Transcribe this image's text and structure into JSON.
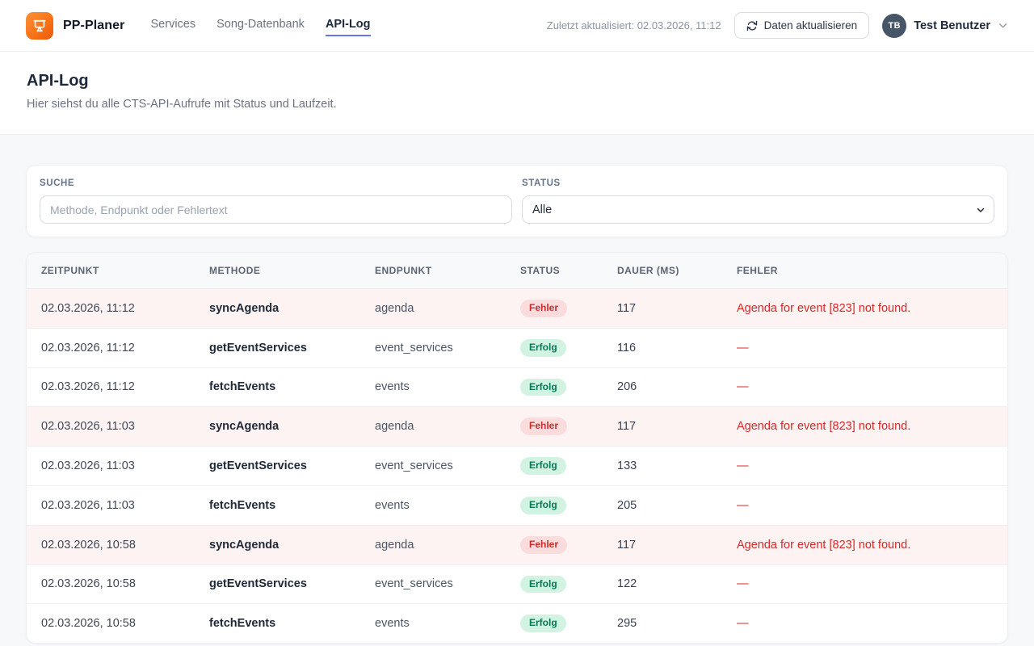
{
  "header": {
    "brand": "PP-Planer",
    "nav": [
      {
        "label": "Services",
        "active": false
      },
      {
        "label": "Song-Datenbank",
        "active": false
      },
      {
        "label": "API-Log",
        "active": true
      }
    ],
    "last_updated": "Zuletzt aktualisiert: 02.03.2026, 11:12",
    "refresh_label": "Daten aktualisieren",
    "user": {
      "initials": "TB",
      "name": "Test Benutzer"
    }
  },
  "page": {
    "title": "API-Log",
    "subtitle": "Hier siehst du alle CTS-API-Aufrufe mit Status und Laufzeit."
  },
  "filters": {
    "search_label": "SUCHE",
    "search_placeholder": "Methode, Endpunkt oder Fehlertext",
    "search_value": "",
    "status_label": "STATUS",
    "status_value": "Alle"
  },
  "table": {
    "columns": [
      "ZEITPUNKT",
      "METHODE",
      "ENDPUNKT",
      "STATUS",
      "DAUER (MS)",
      "FEHLER"
    ],
    "rows": [
      {
        "zeitpunkt": "02.03.2026, 11:12",
        "methode": "syncAgenda",
        "endpunkt": "agenda",
        "status": "Fehler",
        "status_type": "error",
        "dauer": "117",
        "fehler": "Agenda for event [823] not found."
      },
      {
        "zeitpunkt": "02.03.2026, 11:12",
        "methode": "getEventServices",
        "endpunkt": "event_services",
        "status": "Erfolg",
        "status_type": "success",
        "dauer": "116",
        "fehler": "—"
      },
      {
        "zeitpunkt": "02.03.2026, 11:12",
        "methode": "fetchEvents",
        "endpunkt": "events",
        "status": "Erfolg",
        "status_type": "success",
        "dauer": "206",
        "fehler": "—"
      },
      {
        "zeitpunkt": "02.03.2026, 11:03",
        "methode": "syncAgenda",
        "endpunkt": "agenda",
        "status": "Fehler",
        "status_type": "error",
        "dauer": "117",
        "fehler": "Agenda for event [823] not found."
      },
      {
        "zeitpunkt": "02.03.2026, 11:03",
        "methode": "getEventServices",
        "endpunkt": "event_services",
        "status": "Erfolg",
        "status_type": "success",
        "dauer": "133",
        "fehler": "—"
      },
      {
        "zeitpunkt": "02.03.2026, 11:03",
        "methode": "fetchEvents",
        "endpunkt": "events",
        "status": "Erfolg",
        "status_type": "success",
        "dauer": "205",
        "fehler": "—"
      },
      {
        "zeitpunkt": "02.03.2026, 10:58",
        "methode": "syncAgenda",
        "endpunkt": "agenda",
        "status": "Fehler",
        "status_type": "error",
        "dauer": "117",
        "fehler": "Agenda for event [823] not found."
      },
      {
        "zeitpunkt": "02.03.2026, 10:58",
        "methode": "getEventServices",
        "endpunkt": "event_services",
        "status": "Erfolg",
        "status_type": "success",
        "dauer": "122",
        "fehler": "—"
      },
      {
        "zeitpunkt": "02.03.2026, 10:58",
        "methode": "fetchEvents",
        "endpunkt": "events",
        "status": "Erfolg",
        "status_type": "success",
        "dauer": "295",
        "fehler": "—"
      }
    ]
  },
  "colors": {
    "brand_orange": "#f97316",
    "accent_indigo": "#6672f1",
    "error_text": "#d02b2b",
    "error_badge_bg": "#fadcdc",
    "error_row_bg": "#fdf3f3",
    "success_text": "#057a55",
    "success_badge_bg": "#d2f3e1",
    "avatar_bg": "#475569"
  }
}
